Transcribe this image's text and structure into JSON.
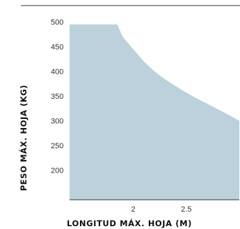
{
  "chart_data": {
    "type": "area",
    "xlabel": "LONGITUD MÁX. HOJA (M)",
    "ylabel": "PESO MÁX. HOJA (KG)",
    "x_ticks": [
      2,
      2.5
    ],
    "x_tick_labels": [
      "2",
      "2.5"
    ],
    "y_ticks": [
      200,
      250,
      300,
      350,
      400,
      450,
      500
    ],
    "y_tick_labels": [
      "200",
      "250",
      "300",
      "350",
      "400",
      "450",
      "500"
    ],
    "xlim": [
      1.4,
      3.0
    ],
    "ylim": [
      140,
      505
    ],
    "series": [
      {
        "x": [
          1.4,
          1.85,
          1.9,
          2.0,
          2.1,
          2.2,
          2.3,
          2.4,
          2.5,
          2.6,
          2.7,
          2.8,
          2.9,
          3.0
        ],
        "y": [
          495,
          495,
          470,
          445,
          420,
          400,
          384,
          370,
          357,
          345,
          334,
          323,
          312,
          300
        ]
      }
    ],
    "grid": false,
    "legend": "none",
    "fill_color": "#bcd1dc",
    "axis_line_color": "#333333"
  }
}
